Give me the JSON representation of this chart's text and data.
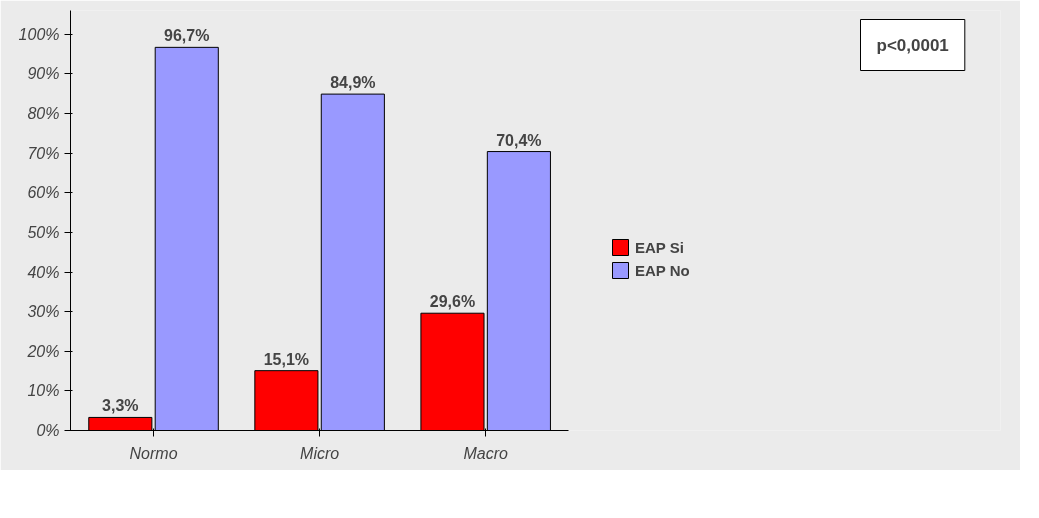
{
  "chart_data": {
    "type": "bar",
    "categories": [
      "Normo",
      "Micro",
      "Macro"
    ],
    "series": [
      {
        "name": "EAP Si",
        "color": "#ff0000",
        "values": [
          3.3,
          15.1,
          29.6
        ],
        "value_labels": [
          "3,3%",
          "15,1%",
          "29,6%"
        ]
      },
      {
        "name": "EAP No",
        "color": "#9999ff",
        "values": [
          96.7,
          84.9,
          70.4
        ],
        "value_labels": [
          "96,7%",
          "84,9%",
          "70,4%"
        ]
      }
    ],
    "ylim": [
      0,
      106
    ],
    "yticks": [
      {
        "value": 0,
        "label": "0%"
      },
      {
        "value": 10,
        "label": "10%"
      },
      {
        "value": 20,
        "label": "20%"
      },
      {
        "value": 30,
        "label": "30%"
      },
      {
        "value": 40,
        "label": "40%"
      },
      {
        "value": 50,
        "label": "50%"
      },
      {
        "value": 60,
        "label": "60%"
      },
      {
        "value": 70,
        "label": "70%"
      },
      {
        "value": 80,
        "label": "80%"
      },
      {
        "value": 90,
        "label": "90%"
      },
      {
        "value": 100,
        "label": "100%"
      }
    ],
    "grid": false,
    "legend": "right",
    "annotations": [
      "p<0,0001"
    ]
  }
}
